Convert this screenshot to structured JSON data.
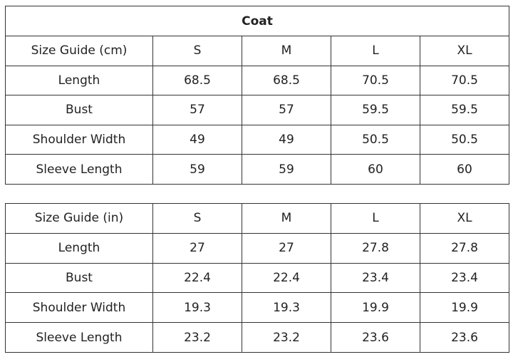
{
  "title": "Coat",
  "tables": [
    {
      "header": [
        "Size Guide (cm)",
        "S",
        "M",
        "L",
        "XL"
      ],
      "rows": [
        [
          "Length",
          "68.5",
          "68.5",
          "70.5",
          "70.5"
        ],
        [
          "Bust",
          "57",
          "57",
          "59.5",
          "59.5"
        ],
        [
          "Shoulder Width",
          "49",
          "49",
          "50.5",
          "50.5"
        ],
        [
          "Sleeve Length",
          "59",
          "59",
          "60",
          "60"
        ]
      ]
    },
    {
      "header": [
        "Size Guide (in)",
        "S",
        "M",
        "L",
        "XL"
      ],
      "rows": [
        [
          "Length",
          "27",
          "27",
          "27.8",
          "27.8"
        ],
        [
          "Bust",
          "22.4",
          "22.4",
          "23.4",
          "23.4"
        ],
        [
          "Shoulder Width",
          "19.3",
          "19.3",
          "19.9",
          "19.9"
        ],
        [
          "Sleeve Length",
          "23.2",
          "23.2",
          "23.6",
          "23.6"
        ]
      ]
    }
  ]
}
